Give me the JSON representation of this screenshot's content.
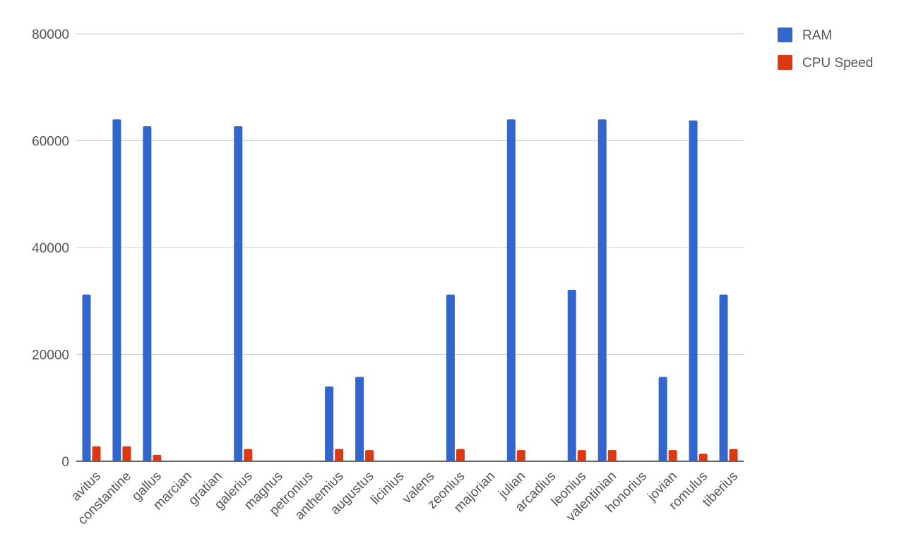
{
  "chart_data": {
    "type": "bar",
    "categories": [
      "avitus",
      "constantine",
      "gallus",
      "marcian",
      "gratian",
      "galerius",
      "magnus",
      "petronius",
      "anthemius",
      "augustus",
      "licinius",
      "valens",
      "zeonius",
      "majorian",
      "julian",
      "arcadius",
      "leonius",
      "valentinian",
      "honorius",
      "jovian",
      "romulus",
      "tiberius"
    ],
    "series": [
      {
        "name": "RAM",
        "color": "#3366cc",
        "values": [
          31200,
          64000,
          62700,
          0,
          0,
          62700,
          0,
          0,
          14000,
          15800,
          0,
          0,
          31200,
          0,
          64000,
          0,
          32100,
          64000,
          0,
          15800,
          63800,
          31200
        ]
      },
      {
        "name": "CPU Speed",
        "color": "#dc3912",
        "values": [
          2800,
          2800,
          1200,
          0,
          0,
          2300,
          0,
          0,
          2300,
          2100,
          0,
          0,
          2300,
          0,
          2100,
          0,
          2100,
          2100,
          0,
          2100,
          1400,
          2300
        ]
      }
    ],
    "ylim": [
      0,
      80000
    ],
    "yticks": [
      0,
      20000,
      40000,
      60000,
      80000
    ],
    "grid": true,
    "legend": "right"
  }
}
